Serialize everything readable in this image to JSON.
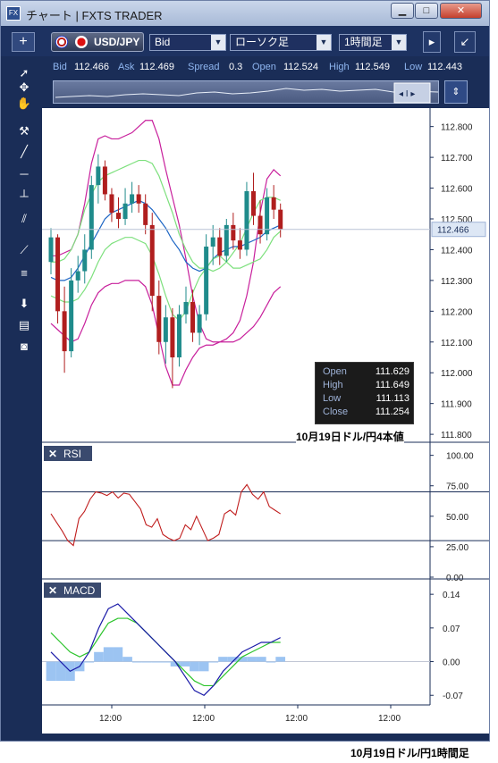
{
  "window": {
    "title": "チャート | FXTS TRADER",
    "app_icon": "FX",
    "min": "▁",
    "max": "□",
    "close": "✕"
  },
  "toolbar": {
    "add": "+",
    "symbol": "USD/JPY",
    "price_type": "Bid",
    "chart_type": "ローソク足",
    "timeframe": "1時間足",
    "accent": "#1a2d57"
  },
  "quote": {
    "bid_label": "Bid",
    "bid": "112.466",
    "ask_label": "Ask",
    "ask": "112.469",
    "spread_label": "Spread",
    "spread": "0.3",
    "open_label": "Open",
    "open": "112.524",
    "high_label": "High",
    "high": "112.549",
    "low_label": "Low",
    "low": "112.443"
  },
  "price_panel": {
    "open_label": "Open",
    "open": "111.629",
    "high_label": "High",
    "high": "111.649",
    "low_label": "Low",
    "low": "111.113",
    "close_label": "Close",
    "close": "111.254"
  },
  "captions": {
    "top": "10月19日ドル/円4本値",
    "bottom": "10月19日ドル/円1時間足"
  },
  "chart_data": {
    "type": "candlestick",
    "price": {
      "ylim": [
        111.78,
        112.86
      ],
      "ticks": [
        "112.800",
        "112.700",
        "112.600",
        "112.500",
        "112.400",
        "112.300",
        "112.200",
        "112.100",
        "112.000",
        "111.900",
        "111.800"
      ],
      "last": "112.466",
      "candles": [
        [
          112.36,
          112.47,
          112.32,
          112.44
        ],
        [
          112.44,
          112.45,
          112.16,
          112.2
        ],
        [
          112.2,
          112.28,
          112.0,
          112.07
        ],
        [
          112.07,
          112.34,
          112.05,
          112.3
        ],
        [
          112.3,
          112.38,
          112.26,
          112.33
        ],
        [
          112.33,
          112.45,
          112.29,
          112.4
        ],
        [
          112.4,
          112.64,
          112.37,
          112.61
        ],
        [
          112.61,
          112.71,
          112.55,
          112.67
        ],
        [
          112.67,
          112.69,
          112.56,
          112.58
        ],
        [
          112.58,
          112.6,
          112.49,
          112.52
        ],
        [
          112.52,
          112.57,
          112.47,
          112.5
        ],
        [
          112.5,
          112.6,
          112.48,
          112.55
        ],
        [
          112.55,
          112.62,
          112.52,
          112.58
        ],
        [
          112.58,
          112.61,
          112.52,
          112.55
        ],
        [
          112.55,
          112.58,
          112.45,
          112.48
        ],
        [
          112.48,
          112.52,
          112.2,
          112.25
        ],
        [
          112.25,
          112.3,
          112.06,
          112.1
        ],
        [
          112.1,
          112.22,
          112.03,
          112.18
        ],
        [
          112.18,
          112.21,
          111.95,
          112.05
        ],
        [
          112.05,
          112.22,
          112.02,
          112.19
        ],
        [
          112.19,
          112.28,
          112.16,
          112.23
        ],
        [
          112.23,
          112.27,
          112.1,
          112.13
        ],
        [
          112.13,
          112.22,
          112.09,
          112.19
        ],
        [
          112.19,
          112.45,
          112.17,
          112.41
        ],
        [
          112.41,
          112.48,
          112.35,
          112.44
        ],
        [
          112.44,
          112.47,
          112.35,
          112.38
        ],
        [
          112.38,
          112.5,
          112.36,
          112.48
        ],
        [
          112.48,
          112.52,
          112.4,
          112.43
        ],
        [
          112.43,
          112.47,
          112.37,
          112.4
        ],
        [
          112.4,
          112.62,
          112.38,
          112.59
        ],
        [
          112.59,
          112.65,
          112.48,
          112.51
        ],
        [
          112.51,
          112.56,
          112.42,
          112.45
        ],
        [
          112.45,
          112.6,
          112.43,
          112.57
        ],
        [
          112.57,
          112.61,
          112.5,
          112.53
        ],
        [
          112.53,
          112.55,
          112.44,
          112.466
        ]
      ],
      "bands": {
        "upper2": [
          112.38,
          112.38,
          112.39,
          112.4,
          112.45,
          112.55,
          112.68,
          112.76,
          112.77,
          112.76,
          112.76,
          112.77,
          112.78,
          112.8,
          112.82,
          112.82,
          112.76,
          112.66,
          112.57,
          112.48,
          112.37,
          112.25,
          112.16,
          112.11,
          112.1,
          112.1,
          112.11,
          112.13,
          112.17,
          112.25,
          112.36,
          112.52,
          112.63,
          112.66,
          112.64
        ],
        "upper1": [
          112.36,
          112.36,
          112.37,
          112.4,
          112.45,
          112.53,
          112.58,
          112.62,
          112.64,
          112.65,
          112.66,
          112.67,
          112.68,
          112.69,
          112.69,
          112.68,
          112.64,
          112.58,
          112.52,
          112.45,
          112.4,
          112.36,
          112.34,
          112.34,
          112.33,
          112.34,
          112.36,
          112.39,
          112.42,
          112.47,
          112.52,
          112.56,
          112.57,
          112.57,
          112.56
        ],
        "middle": [
          112.31,
          112.3,
          112.3,
          112.31,
          112.34,
          112.38,
          112.42,
          112.46,
          112.5,
          112.52,
          112.53,
          112.54,
          112.55,
          112.56,
          112.55,
          112.53,
          112.5,
          112.47,
          112.43,
          112.4,
          112.36,
          112.34,
          112.33,
          112.34,
          112.37,
          112.39,
          112.4,
          112.41,
          112.41,
          112.42,
          112.43,
          112.44,
          112.46,
          112.47,
          112.48
        ],
        "lower1": [
          112.25,
          112.24,
          112.23,
          112.23,
          112.24,
          112.27,
          112.31,
          112.36,
          112.4,
          112.42,
          112.43,
          112.44,
          112.44,
          112.43,
          112.42,
          112.38,
          112.32,
          112.25,
          112.19,
          112.17,
          112.2,
          112.26,
          112.31,
          112.34,
          112.37,
          112.38,
          112.36,
          112.34,
          112.34,
          112.35,
          112.36,
          112.37,
          112.4,
          112.44,
          112.46
        ],
        "lower2": [
          112.16,
          112.14,
          112.12,
          112.1,
          112.11,
          112.16,
          112.22,
          112.26,
          112.28,
          112.29,
          112.29,
          112.3,
          112.3,
          112.3,
          112.28,
          112.22,
          112.12,
          112.02,
          111.96,
          111.96,
          112.01,
          112.05,
          112.08,
          112.09,
          112.09,
          112.1,
          112.1,
          112.1,
          112.11,
          112.13,
          112.15,
          112.18,
          112.22,
          112.26,
          112.28
        ]
      },
      "colors": {
        "up": "#1f8b8b",
        "down": "#b01e1e",
        "upper2": "#c8209c",
        "upper1": "#7de07d",
        "middle": "#1c65c4",
        "lower1": "#7de07d",
        "lower2": "#c8209c"
      }
    },
    "rsi": {
      "title": "RSI",
      "ylim": [
        0,
        110
      ],
      "ticks": [
        "100.00",
        "75.00",
        "50.00",
        "25.00",
        "0.00"
      ],
      "levels": [
        70,
        30
      ],
      "values": [
        52,
        45,
        38,
        30,
        26,
        48,
        54,
        64,
        70,
        69,
        67,
        70,
        65,
        69,
        68,
        62,
        56,
        43,
        41,
        48,
        35,
        32,
        30,
        32,
        43,
        39,
        50,
        40,
        30,
        32,
        35,
        52,
        55,
        51,
        70,
        76,
        68,
        64,
        70,
        58,
        55,
        52
      ]
    },
    "macd": {
      "title": "MACD",
      "ylim": [
        -0.09,
        0.17
      ],
      "ticks": [
        "0.14",
        "0.07",
        "0.00",
        "-0.07"
      ],
      "macd": [
        0.02,
        0.0,
        -0.02,
        -0.01,
        0.02,
        0.07,
        0.11,
        0.12,
        0.1,
        0.08,
        0.06,
        0.04,
        0.02,
        0.0,
        -0.03,
        -0.06,
        -0.07,
        -0.05,
        -0.02,
        0.0,
        0.02,
        0.03,
        0.04,
        0.04,
        0.05
      ],
      "signal": [
        0.06,
        0.04,
        0.02,
        0.01,
        0.02,
        0.05,
        0.08,
        0.09,
        0.09,
        0.08,
        0.06,
        0.04,
        0.02,
        0.0,
        -0.02,
        -0.04,
        -0.05,
        -0.05,
        -0.03,
        -0.01,
        0.01,
        0.02,
        0.03,
        0.04,
        0.04
      ],
      "histogram": [
        -0.04,
        -0.04,
        -0.04,
        -0.02,
        0.0,
        0.02,
        0.03,
        0.03,
        0.01,
        0.0,
        0.0,
        0.0,
        0.0,
        -0.01,
        -0.01,
        -0.02,
        -0.02,
        0.0,
        0.01,
        0.01,
        0.01,
        0.01,
        0.01,
        0.0,
        0.01
      ],
      "colors": {
        "macd": "#1a1aa8",
        "signal": "#2cc42c",
        "histogram": "#9cc4f2"
      }
    },
    "xaxis": {
      "ticks": [
        "12:00",
        "12:00",
        "12:00",
        "12:00"
      ]
    }
  }
}
